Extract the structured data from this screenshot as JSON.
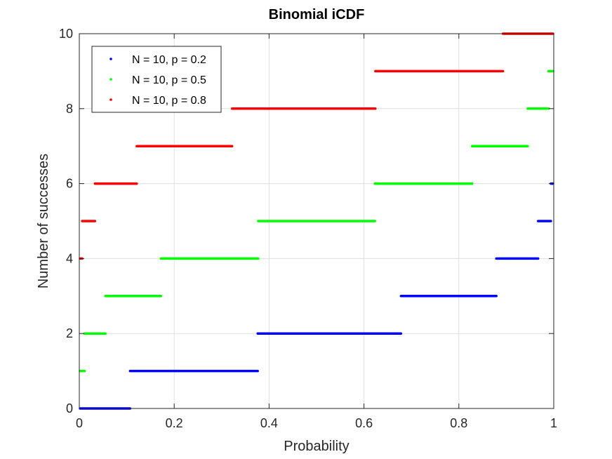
{
  "chart_data": {
    "type": "line",
    "title": "Binomial iCDF",
    "xlabel": "Probability",
    "ylabel": "Number of successes",
    "xlim": [
      0,
      1
    ],
    "ylim": [
      0,
      10
    ],
    "x_ticks": [
      "0",
      "0.2",
      "0.4",
      "0.6",
      "0.8",
      "1"
    ],
    "y_ticks": [
      "0",
      "2",
      "4",
      "6",
      "8",
      "10"
    ],
    "grid": true,
    "legend_position": "top-left",
    "series": [
      {
        "name": "N = 10, p = 0.2",
        "color": "#0000ff",
        "segments": [
          {
            "y": 0,
            "x_start": 0.0,
            "x_end": 0.107
          },
          {
            "y": 1,
            "x_start": 0.107,
            "x_end": 0.376
          },
          {
            "y": 2,
            "x_start": 0.376,
            "x_end": 0.678
          },
          {
            "y": 3,
            "x_start": 0.678,
            "x_end": 0.879
          },
          {
            "y": 4,
            "x_start": 0.879,
            "x_end": 0.967
          },
          {
            "y": 5,
            "x_start": 0.967,
            "x_end": 0.994
          },
          {
            "y": 6,
            "x_start": 0.994,
            "x_end": 1.0
          }
        ]
      },
      {
        "name": "N = 10, p = 0.5",
        "color": "#00ff00",
        "segments": [
          {
            "y": 1,
            "x_start": 0.001,
            "x_end": 0.011
          },
          {
            "y": 2,
            "x_start": 0.011,
            "x_end": 0.055
          },
          {
            "y": 3,
            "x_start": 0.055,
            "x_end": 0.172
          },
          {
            "y": 4,
            "x_start": 0.172,
            "x_end": 0.377
          },
          {
            "y": 5,
            "x_start": 0.377,
            "x_end": 0.623
          },
          {
            "y": 6,
            "x_start": 0.623,
            "x_end": 0.828
          },
          {
            "y": 7,
            "x_start": 0.828,
            "x_end": 0.945
          },
          {
            "y": 8,
            "x_start": 0.945,
            "x_end": 0.989
          },
          {
            "y": 9,
            "x_start": 0.989,
            "x_end": 0.999
          }
        ]
      },
      {
        "name": "N = 10, p = 0.8",
        "color": "#ff0000",
        "segments": [
          {
            "y": 4,
            "x_start": 0.0,
            "x_end": 0.006
          },
          {
            "y": 5,
            "x_start": 0.006,
            "x_end": 0.033
          },
          {
            "y": 6,
            "x_start": 0.033,
            "x_end": 0.121
          },
          {
            "y": 7,
            "x_start": 0.121,
            "x_end": 0.322
          },
          {
            "y": 8,
            "x_start": 0.322,
            "x_end": 0.624
          },
          {
            "y": 9,
            "x_start": 0.624,
            "x_end": 0.893
          },
          {
            "y": 10,
            "x_start": 0.893,
            "x_end": 1.0
          }
        ]
      }
    ]
  }
}
